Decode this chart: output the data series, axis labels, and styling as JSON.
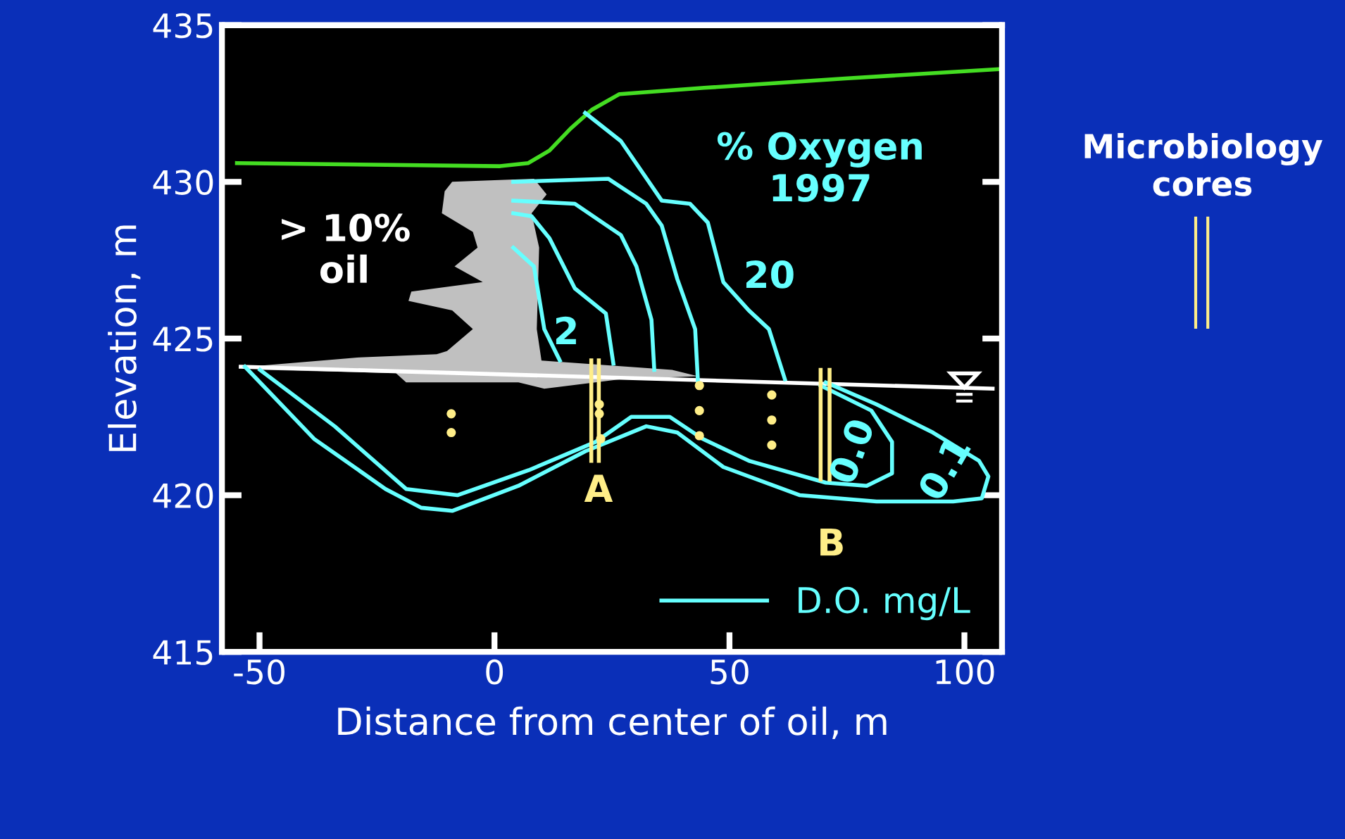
{
  "chart_data": {
    "type": "line",
    "xlabel": "Distance from center of oil, m",
    "ylabel": "Elevation, m",
    "xlim": [
      -58,
      108
    ],
    "ylim": [
      415,
      435
    ],
    "xticks": [
      -50,
      0,
      50,
      100
    ],
    "yticks": [
      415,
      420,
      425,
      430,
      435
    ],
    "grid": false,
    "legend": "bottom right",
    "marker": "none",
    "line_style": "solid",
    "series": [
      {
        "type": "area",
        "color": "#c0c0c0",
        "x": [
          -52.5,
          -28.6,
          -12.3,
          -10.1,
          -4.6,
          -9.0,
          -18.3,
          -17.7,
          -2.5,
          -8.5,
          -3.6,
          -4.6,
          -11.2,
          -10.6,
          -9.0,
          8.4,
          11.1,
          7.9,
          9.5,
          9.0,
          10.0,
          37.8,
          43.3,
          26.9,
          10.6,
          5.1,
          -18.8,
          -21.0,
          -49.3
        ],
        "values": [
          424.1,
          424.4,
          424.5,
          424.6,
          425.3,
          425.9,
          426.2,
          426.5,
          426.8,
          427.3,
          427.9,
          428.4,
          429.0,
          429.7,
          430.0,
          430.1,
          429.6,
          429.0,
          427.9,
          425.3,
          424.3,
          424.0,
          423.8,
          423.7,
          423.4,
          423.6,
          423.6,
          423.9,
          424.0
        ]
      },
      {
        "color": "#44dd22",
        "x": [
          -54.8,
          1.2,
          7.2,
          11.7,
          16.2,
          20.7,
          26.6,
          44.6,
          74.6,
          108
        ],
        "values": [
          430.6,
          430.5,
          430.6,
          431.0,
          431.7,
          432.3,
          432.8,
          433.0,
          433.3,
          433.6
        ]
      },
      {
        "color": "#ffffff",
        "x": [
          -54,
          106
        ],
        "values": [
          424.1,
          423.4
        ]
      },
      {
        "color": "#66ffff",
        "x": [
          19.3,
          26.9,
          35.6,
          41.6,
          45.4,
          48.7,
          54.1,
          58.4,
          61.8
        ],
        "values": [
          432.2,
          431.3,
          429.4,
          429.3,
          428.7,
          426.8,
          425.9,
          425.3,
          423.7
        ]
      },
      {
        "color": "#66ffff",
        "x": [
          4.0,
          24.2,
          32.3,
          35.6,
          38.9,
          42.7,
          43.3
        ],
        "values": [
          430.0,
          430.1,
          429.3,
          428.6,
          426.9,
          425.3,
          423.6
        ]
      },
      {
        "color": "#66ffff",
        "x": [
          4.0,
          17.1,
          26.9,
          30.2,
          33.4,
          34.0
        ],
        "values": [
          429.4,
          429.3,
          428.3,
          427.3,
          425.6,
          424.0
        ]
      },
      {
        "color": "#66ffff",
        "x": [
          4.0,
          7.9,
          11.7,
          17.1,
          23.7,
          25.3
        ],
        "values": [
          429.0,
          428.9,
          428.2,
          426.6,
          425.8,
          424.2
        ]
      },
      {
        "color": "#66ffff",
        "x": [
          4.0,
          8.4,
          10.6,
          13.9
        ],
        "values": [
          427.9,
          427.3,
          425.3,
          424.3
        ]
      },
      {
        "name": "D.O. mg/L",
        "color": "#66ffff",
        "x": [
          -53.1,
          -38.4,
          -23.2,
          -15.6,
          -9.0,
          5.1,
          19.3,
          32.3,
          38.9,
          48.7,
          65.0,
          81.3,
          97.6,
          103.7,
          105.1,
          103.1,
          93.3,
          81.3,
          70.5
        ],
        "values": [
          424.1,
          421.8,
          420.2,
          419.6,
          419.5,
          420.3,
          421.4,
          422.2,
          422.0,
          420.9,
          420.0,
          419.8,
          419.8,
          419.9,
          420.6,
          421.1,
          422.0,
          422.9,
          423.6
        ]
      },
      {
        "color": "#66ffff",
        "x": [
          -49.9,
          -34.0,
          -18.8,
          -7.9,
          7.3,
          21.5,
          29.1,
          37.3,
          44.3,
          54.1,
          70.5,
          79.2,
          84.6,
          84.6,
          80.2,
          69.4
        ],
        "values": [
          424.0,
          422.2,
          420.2,
          420.0,
          420.8,
          421.7,
          422.5,
          422.5,
          421.8,
          421.1,
          420.4,
          420.3,
          420.7,
          421.7,
          422.7,
          423.5
        ]
      },
      {
        "color": "#ffee88",
        "x": [
          20.6,
          20.6
        ],
        "values": [
          424.3,
          421.1
        ]
      },
      {
        "color": "#ffee88",
        "x": [
          22.2,
          22.2
        ],
        "values": [
          424.3,
          421.1
        ]
      },
      {
        "color": "#ffee88",
        "x": [
          69.4,
          69.4
        ],
        "values": [
          424.0,
          420.5
        ]
      },
      {
        "color": "#ffee88",
        "x": [
          71.3,
          71.3
        ],
        "values": [
          424.0,
          420.5
        ]
      },
      {
        "type": "scatter",
        "marker": "circle",
        "color": "#ffee88",
        "x": [
          -9.2,
          -9.2,
          22.3,
          22.3,
          22.6,
          43.6,
          43.6,
          43.6,
          59.0,
          59.0,
          59.0
        ],
        "values": [
          422.6,
          422.0,
          422.9,
          422.6,
          421.8,
          423.5,
          422.7,
          421.9,
          423.2,
          422.4,
          421.6
        ]
      }
    ],
    "annotations": [
      "% Oxygen\n1997",
      "> 10%\noil",
      "2",
      "20",
      "0.0",
      "0.1",
      "A",
      "B",
      "Microbiology\ncores"
    ]
  }
}
